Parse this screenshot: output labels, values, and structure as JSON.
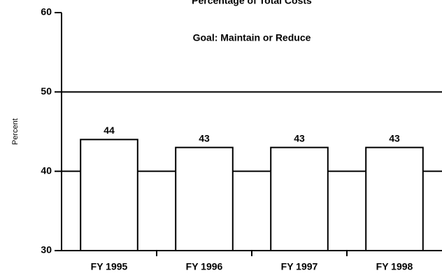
{
  "chart_data": {
    "type": "bar",
    "title": "Percentage of Total Costs",
    "y_label": "Percent",
    "annotation": "Goal: Maintain or Reduce",
    "categories": [
      "FY 1995",
      "FY 1996",
      "FY 1997",
      "FY 1998"
    ],
    "values": [
      44,
      43,
      43,
      43
    ],
    "color": "#ffffff",
    "ylim": [
      30,
      60
    ],
    "yticks": [
      30,
      40,
      50,
      60
    ],
    "grid": true
  }
}
